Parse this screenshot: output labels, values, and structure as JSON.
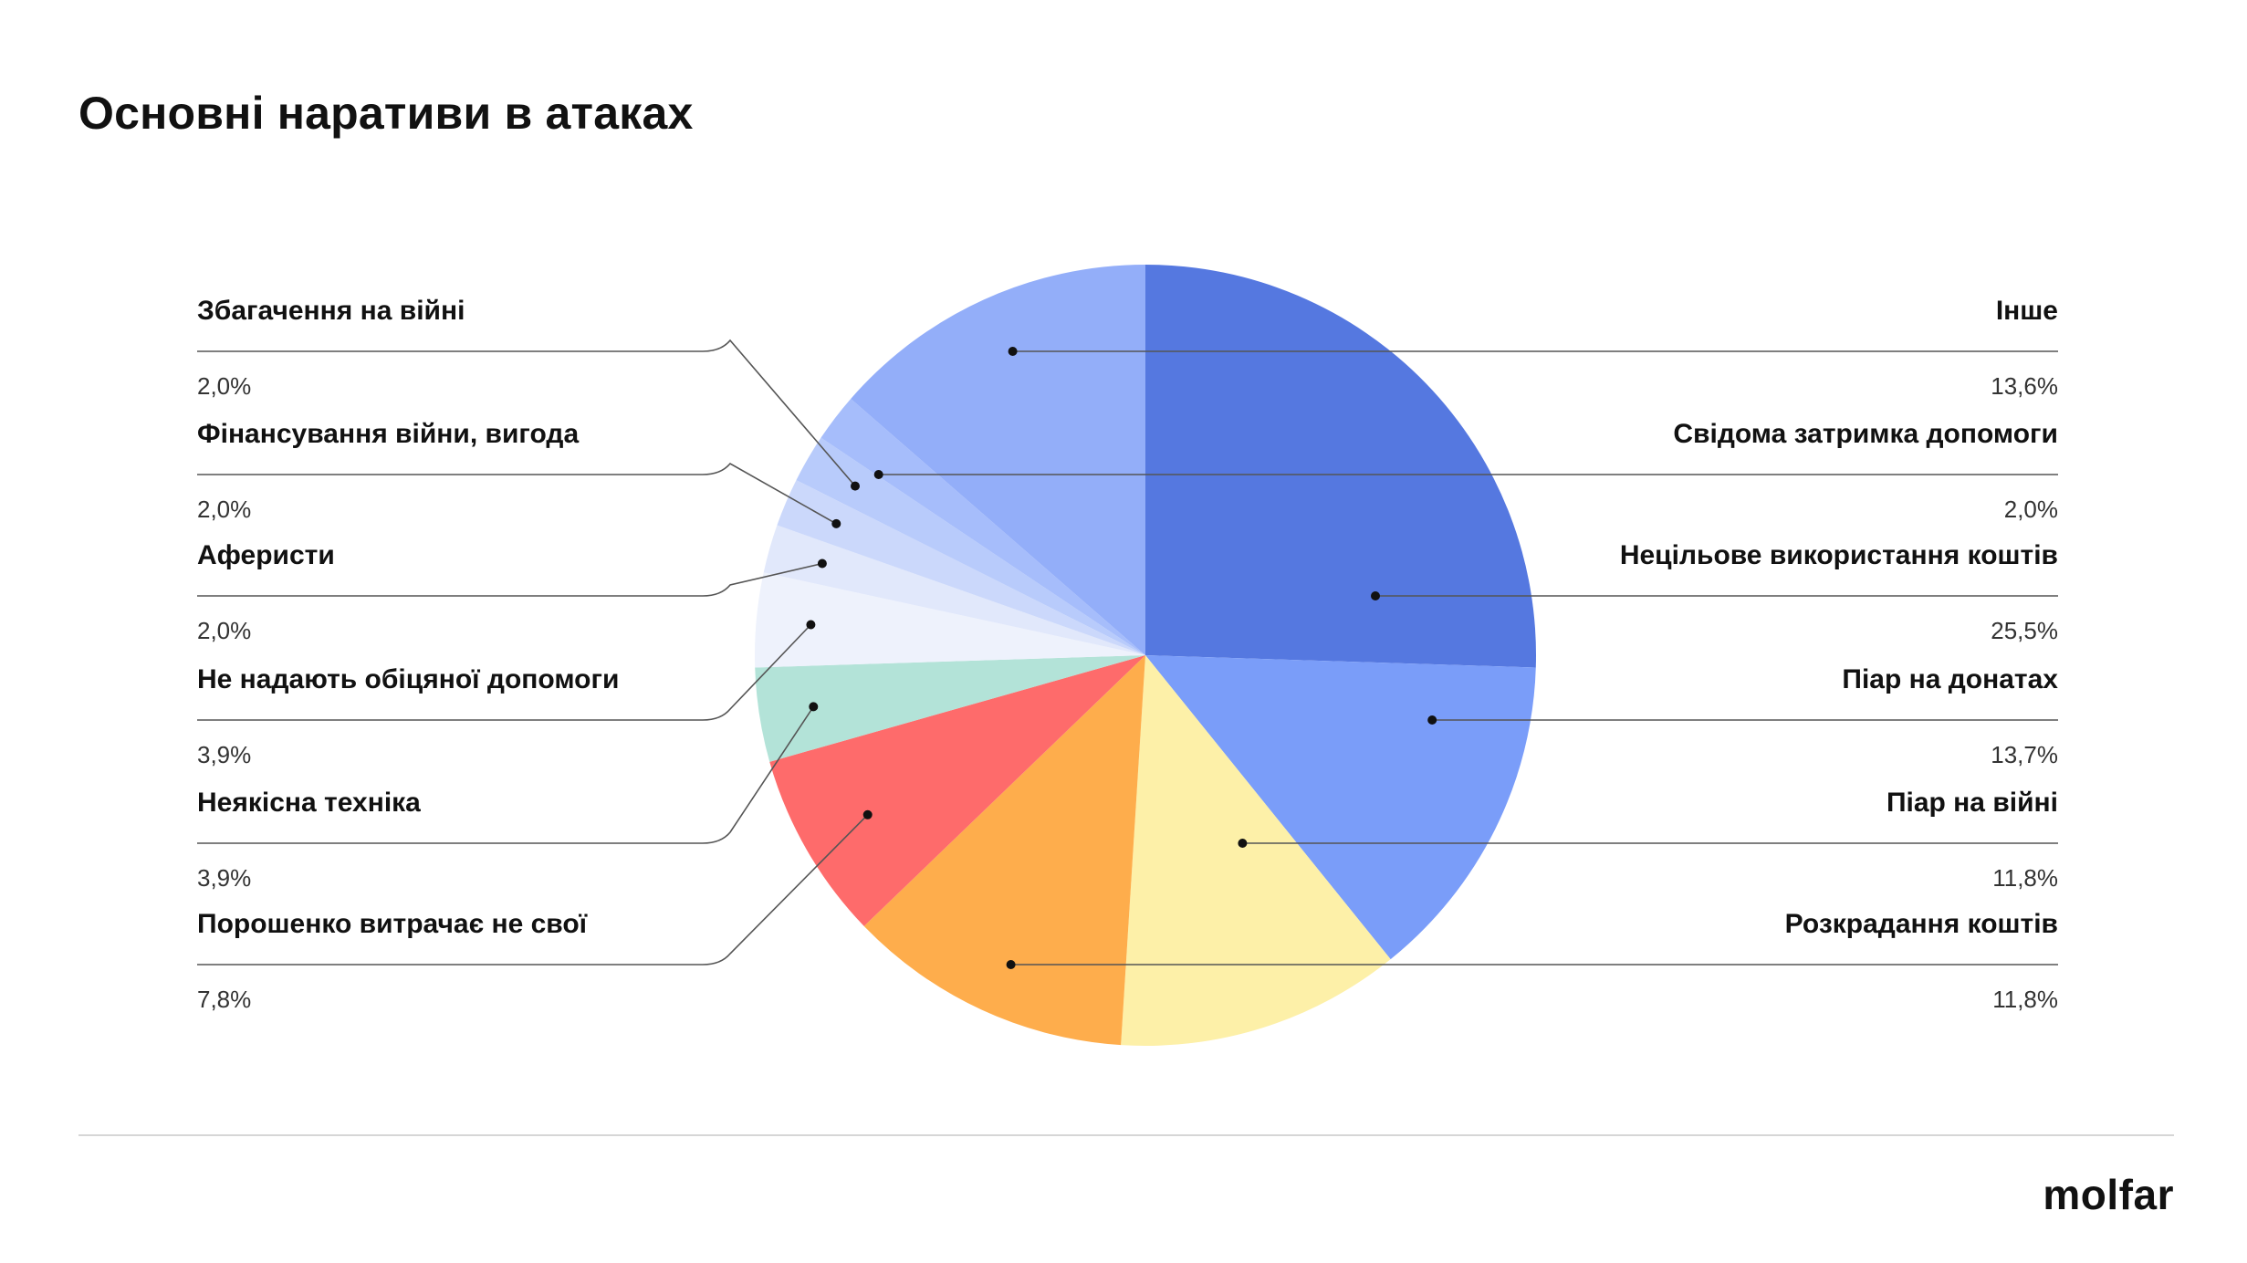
{
  "title": "Основні наративи в атаках",
  "logo": "molfar",
  "chart_data": {
    "type": "pie",
    "title": "Основні наративи в атаках",
    "unit": "%",
    "slices": [
      {
        "label": "Нецільове використання коштів",
        "value": 25.5,
        "value_label": "25,5%",
        "color": "#5578e0",
        "side": "right"
      },
      {
        "label": "Піар на донатах",
        "value": 13.7,
        "value_label": "13,7%",
        "color": "#7a9df9",
        "side": "right"
      },
      {
        "label": "Піар на війні",
        "value": 11.8,
        "value_label": "11,8%",
        "color": "#fdf0a8",
        "side": "right"
      },
      {
        "label": "Розкрадання коштів",
        "value": 11.8,
        "value_label": "11,8%",
        "color": "#fead4c",
        "side": "right"
      },
      {
        "label": "Порошенко витрачає не свої",
        "value": 7.8,
        "value_label": "7,8%",
        "color": "#fe6b6b",
        "side": "left"
      },
      {
        "label": "Неякісна техніка",
        "value": 3.9,
        "value_label": "3,9%",
        "color": "#b3e3d8",
        "side": "left"
      },
      {
        "label": "Не надають обіцяної допомоги",
        "value": 3.9,
        "value_label": "3,9%",
        "color": "#eef2fc",
        "side": "left"
      },
      {
        "label": "Аферисти",
        "value": 2.0,
        "value_label": "2,0%",
        "color": "#e1e8fb",
        "side": "left"
      },
      {
        "label": "Фінансування війни, вигода",
        "value": 2.0,
        "value_label": "2,0%",
        "color": "#cbd8fb",
        "side": "left"
      },
      {
        "label": "Збагачення на війні",
        "value": 2.0,
        "value_label": "2,0%",
        "color": "#b8cbfb",
        "side": "left"
      },
      {
        "label": "Свідома затримка допомоги",
        "value": 2.0,
        "value_label": "2,0%",
        "color": "#a6bdfb",
        "side": "right"
      },
      {
        "label": "Інше",
        "value": 13.6,
        "value_label": "13,6%",
        "color": "#93aef9",
        "side": "right"
      }
    ],
    "legend_order": {
      "left": [
        "Збагачення на війні",
        "Фінансування війни, вигода",
        "Аферисти",
        "Не надають обіцяної допомоги",
        "Неякісна техніка",
        "Порошенко витрачає не свої"
      ],
      "right": [
        "Інше",
        "Свідома затримка допомоги",
        "Нецільове використання коштів",
        "Піар на донатах",
        "Піар на війні",
        "Розкрадання коштів"
      ]
    },
    "start": "12 o'clock",
    "direction": "clockwise"
  }
}
